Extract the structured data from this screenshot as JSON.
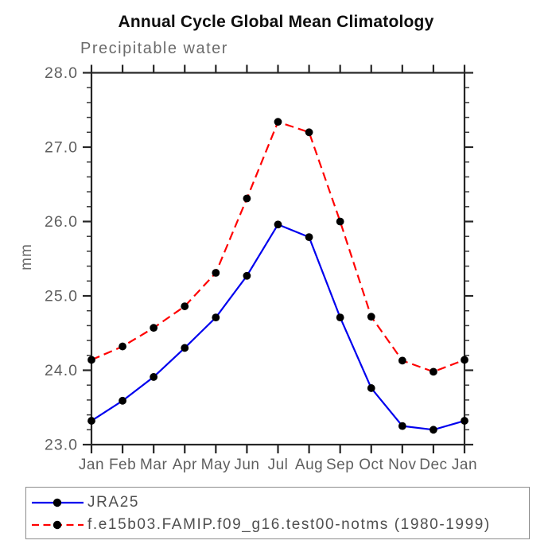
{
  "title": "Annual Cycle Global Mean Climatology",
  "subtitle": "Precipitable water",
  "ylabel": "mm",
  "colors": {
    "series_jra25": "#0000ee",
    "series_model": "#ff0000",
    "marker": "#000000",
    "axis": "#262626",
    "tick_label": "#5f5f5f",
    "legend_border": "#8c8c8c",
    "legend_text": "#4f4f4f",
    "title_text": "#0d0d0d"
  },
  "chart_data": {
    "type": "line",
    "title": "Annual Cycle Global Mean Climatology",
    "subtitle": "Precipitable water",
    "xlabel": "",
    "ylabel": "mm",
    "categories": [
      "Jan",
      "Feb",
      "Mar",
      "Apr",
      "May",
      "Jun",
      "Jul",
      "Aug",
      "Sep",
      "Oct",
      "Nov",
      "Dec",
      "Jan"
    ],
    "ylim": [
      23.0,
      28.0
    ],
    "ytick_interval": 1.0,
    "yminor_interval": 0.2,
    "ytick_labels": [
      "23.0",
      "24.0",
      "25.0",
      "26.0",
      "27.0",
      "28.0"
    ],
    "grid": false,
    "frame": "box",
    "legend_position": "bottom-left",
    "series": [
      {
        "name": "JRA25",
        "color": "#0000ee",
        "style": "solid",
        "marker": "circle",
        "marker_color": "#000000",
        "values": [
          23.32,
          23.59,
          23.91,
          24.3,
          24.71,
          25.27,
          25.96,
          25.79,
          24.71,
          23.76,
          23.25,
          23.2,
          23.32
        ]
      },
      {
        "name": "f.e15b03.FAMIP.f09_g16.test00-notms (1980-1999)",
        "color": "#ff0000",
        "style": "dashed",
        "marker": "circle",
        "marker_color": "#000000",
        "values": [
          24.14,
          24.32,
          24.57,
          24.86,
          25.31,
          26.31,
          27.34,
          27.2,
          26.0,
          24.72,
          24.13,
          23.98,
          24.14
        ]
      }
    ]
  }
}
